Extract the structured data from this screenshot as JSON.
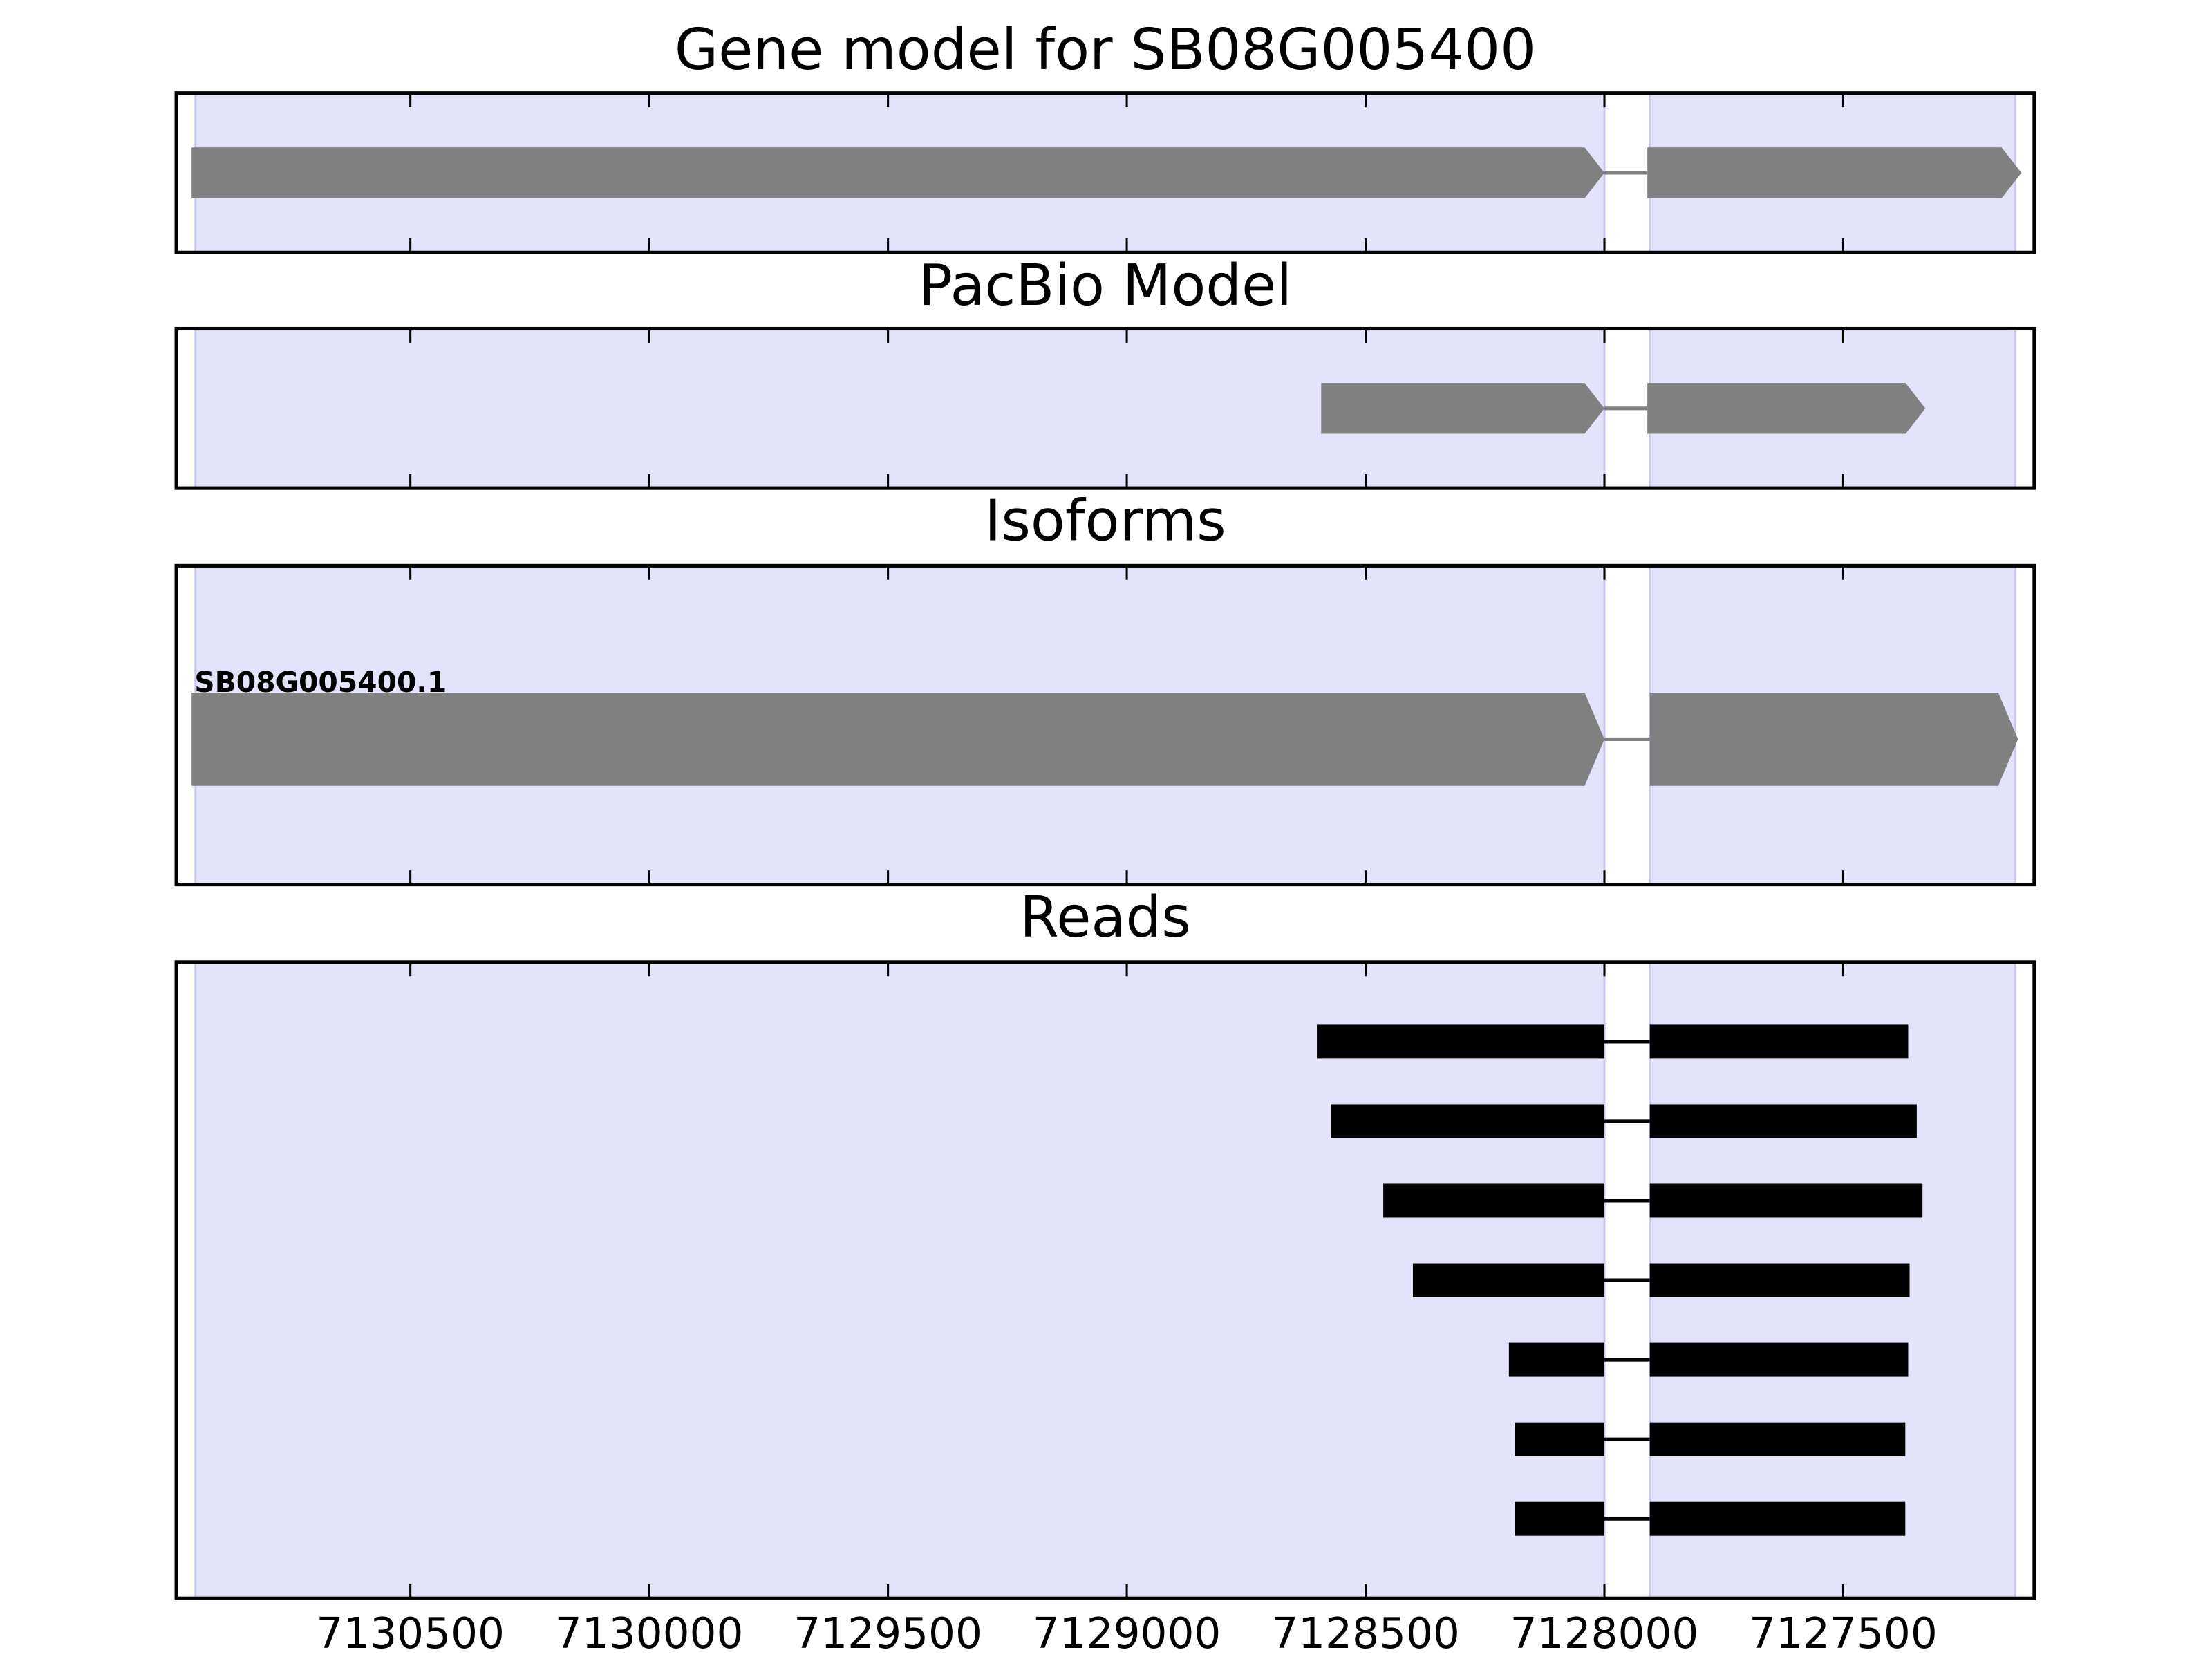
{
  "chart_data": {
    "type": "gene-tracks",
    "xlim": [
      7130990,
      7127100
    ],
    "xticks": [
      7130500,
      7130000,
      7129500,
      7129000,
      7128500,
      7128000,
      7127500
    ],
    "shaded": [
      [
        7130950,
        7128000
      ],
      [
        7127905,
        7127140
      ]
    ],
    "shade_color": "#e3e3fc",
    "panels": [
      {
        "title": "Gene model for SB08G005400",
        "color": "#808080",
        "arrow": true,
        "tracks": [
          {
            "exons": [
              [
                7130958,
                7128000
              ],
              [
                7127910,
                7127127
              ]
            ]
          }
        ]
      },
      {
        "title": "PacBio Model",
        "color": "#808080",
        "arrow": true,
        "tracks": [
          {
            "exons": [
              [
                7128593,
                7128000
              ],
              [
                7127910,
                7127328
              ]
            ]
          }
        ]
      },
      {
        "title": "Isoforms",
        "color": "#808080",
        "arrow": true,
        "tracks": [
          {
            "label": "SB08G005400.1",
            "exons": [
              [
                7130958,
                7128000
              ],
              [
                7127905,
                7127134
              ]
            ]
          }
        ]
      },
      {
        "title": "Reads",
        "color": "#000000",
        "arrow": false,
        "tracks": [
          {
            "exons": [
              [
                7128602,
                7128000
              ],
              [
                7127905,
                7127364
              ]
            ]
          },
          {
            "exons": [
              [
                7128573,
                7128000
              ],
              [
                7127905,
                7127346
              ]
            ]
          },
          {
            "exons": [
              [
                7128463,
                7128000
              ],
              [
                7127905,
                7127334
              ]
            ]
          },
          {
            "exons": [
              [
                7128401,
                7128000
              ],
              [
                7127905,
                7127361
              ]
            ]
          },
          {
            "exons": [
              [
                7128200,
                7128000
              ],
              [
                7127905,
                7127364
              ]
            ]
          },
          {
            "exons": [
              [
                7128188,
                7128000
              ],
              [
                7127905,
                7127370
              ]
            ]
          },
          {
            "exons": [
              [
                7128188,
                7128000
              ],
              [
                7127905,
                7127370
              ]
            ]
          }
        ]
      }
    ]
  }
}
